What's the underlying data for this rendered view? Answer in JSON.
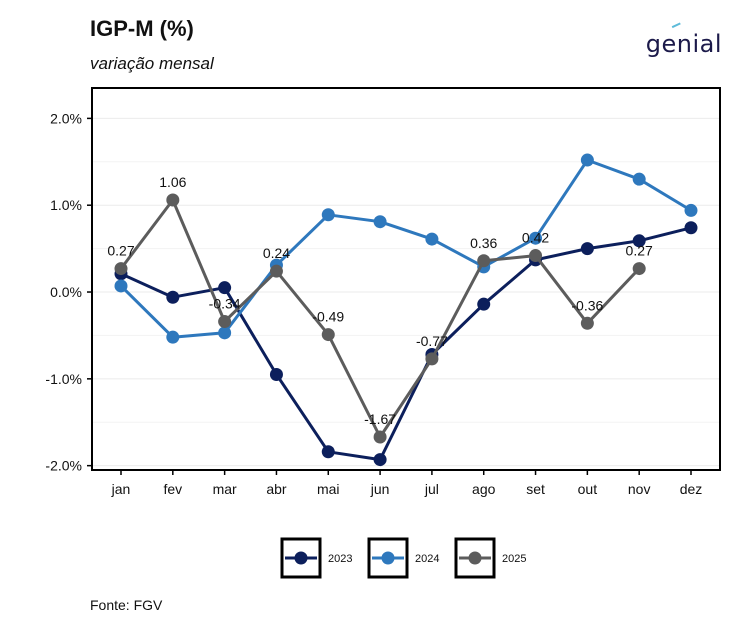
{
  "header": {
    "title": "IGP-M (%)",
    "subtitle": "variação mensal",
    "logo_text": "genial"
  },
  "footer": {
    "source": "Fonte: FGV"
  },
  "colors": {
    "2023": "#0c1f5c",
    "2024": "#2e78bd",
    "2025": "#5c5c5c",
    "axis": "#000000",
    "grid": "#ebebeb"
  },
  "chart_data": {
    "type": "line",
    "title": "IGP-M (%)",
    "subtitle": "variação mensal",
    "xlabel": "",
    "ylabel": "",
    "categories": [
      "jan",
      "fev",
      "mar",
      "abr",
      "mai",
      "jun",
      "jul",
      "ago",
      "set",
      "out",
      "nov",
      "dez"
    ],
    "ylim": [
      -2.05,
      2.35
    ],
    "yticks": [
      -2.0,
      -1.0,
      0.0,
      1.0,
      2.0
    ],
    "ytick_labels": [
      "-2.0%",
      "-1.0%",
      "0.0%",
      "1.0%",
      "2.0%"
    ],
    "legend_position": "bottom",
    "series": [
      {
        "name": "2023",
        "color": "#0c1f5c",
        "values": [
          0.21,
          -0.06,
          0.05,
          -0.95,
          -1.84,
          -1.93,
          -0.72,
          -0.14,
          0.37,
          0.5,
          0.59,
          0.74
        ]
      },
      {
        "name": "2024",
        "color": "#2e78bd",
        "values": [
          0.07,
          -0.52,
          -0.47,
          0.31,
          0.89,
          0.81,
          0.61,
          0.29,
          0.62,
          1.52,
          1.3,
          0.94
        ]
      },
      {
        "name": "2025",
        "color": "#5c5c5c",
        "values": [
          0.27,
          1.06,
          -0.34,
          0.24,
          -0.49,
          -1.67,
          -0.77,
          0.36,
          0.42,
          -0.36,
          0.27,
          null
        ],
        "labels": [
          "0.27",
          "1.06",
          "-0.34",
          "0.24",
          "-0.49",
          "-1.67",
          "-0.77",
          "0.36",
          "0.42",
          "-0.36",
          "0.27",
          null
        ]
      }
    ]
  }
}
